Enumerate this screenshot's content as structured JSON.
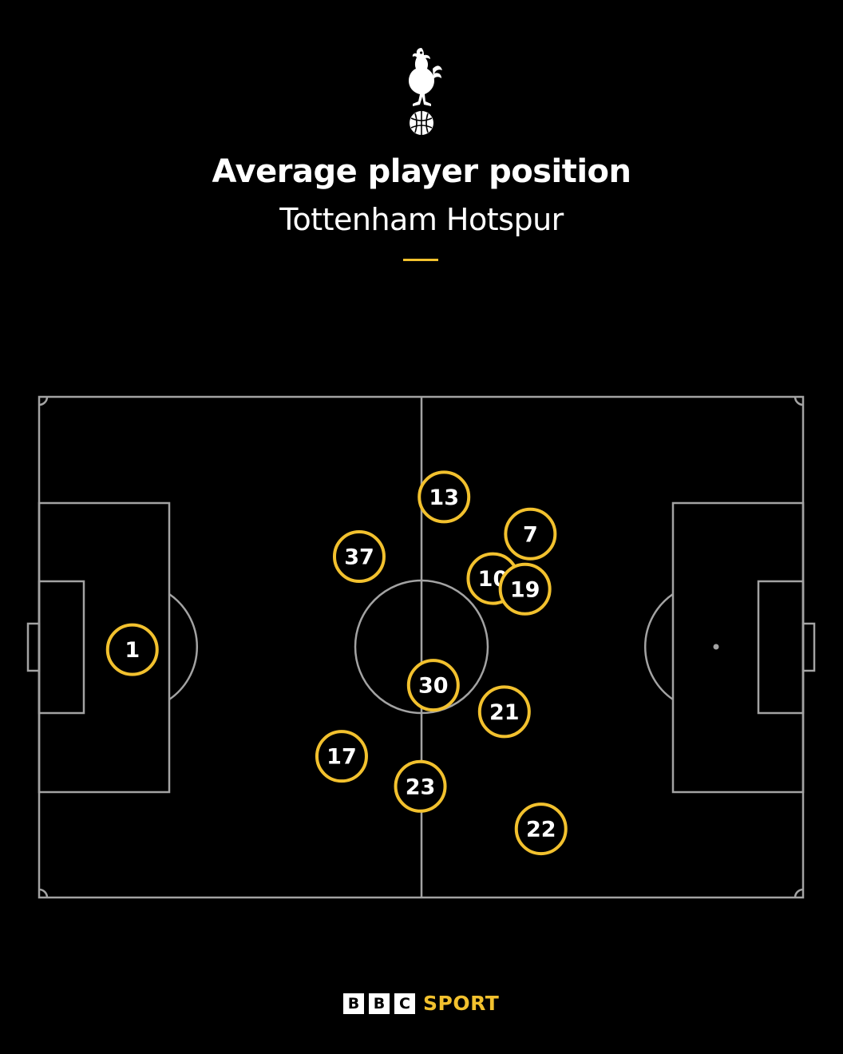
{
  "header": {
    "crest_icon": "tottenham-cockerel-crest-icon",
    "title": "Average player position",
    "subtitle": "Tottenham Hotspur",
    "accent_color": "#f2c12e"
  },
  "pitch": {
    "line_color": "#a3a3a3",
    "background": "#000000"
  },
  "chart_data": {
    "type": "scatter",
    "title": "Average player position",
    "subtitle": "Tottenham Hotspur",
    "x_axis": "pitch length (0 = own goal line, 100 = opponent goal line)",
    "y_axis": "pitch width (0 = top touchline, 100 = bottom touchline)",
    "xlim": [
      0,
      100
    ],
    "ylim": [
      0,
      100
    ],
    "marker_color": "#f2c12e",
    "players": [
      {
        "number": "1",
        "x": 12.2,
        "y": 50.5
      },
      {
        "number": "37",
        "x": 41.9,
        "y": 31.9
      },
      {
        "number": "13",
        "x": 53.0,
        "y": 20.0
      },
      {
        "number": "7",
        "x": 64.3,
        "y": 27.4
      },
      {
        "number": "10",
        "x": 59.4,
        "y": 36.3
      },
      {
        "number": "19",
        "x": 63.6,
        "y": 38.4
      },
      {
        "number": "30",
        "x": 51.6,
        "y": 57.6
      },
      {
        "number": "21",
        "x": 60.9,
        "y": 62.9
      },
      {
        "number": "17",
        "x": 39.6,
        "y": 71.8
      },
      {
        "number": "23",
        "x": 49.9,
        "y": 77.8
      },
      {
        "number": "22",
        "x": 65.7,
        "y": 86.3
      }
    ]
  },
  "footer": {
    "bbc_letters": [
      "B",
      "B",
      "C"
    ],
    "sport_label": "SPORT"
  }
}
